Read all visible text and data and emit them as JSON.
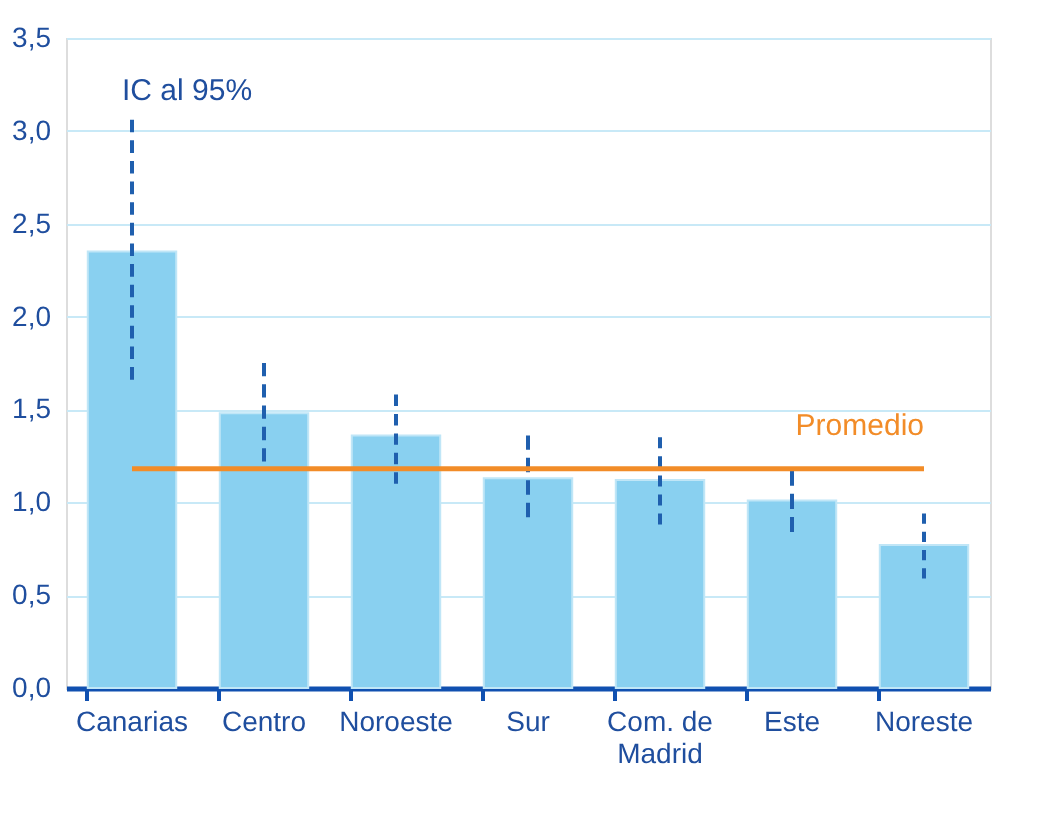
{
  "chart_data": {
    "type": "bar",
    "categories": [
      "Canarias",
      "Centro",
      "Noroeste",
      "Sur",
      "Com. de Madrid",
      "Este",
      "Noreste"
    ],
    "values": [
      2.35,
      1.48,
      1.36,
      1.13,
      1.12,
      1.01,
      0.77
    ],
    "color": "#89d0f0",
    "errors": [
      [
        1.66,
        3.06
      ],
      [
        1.22,
        1.75
      ],
      [
        1.1,
        1.58
      ],
      [
        0.92,
        1.36
      ],
      [
        0.88,
        1.35
      ],
      [
        0.84,
        1.17
      ],
      [
        0.59,
        0.94
      ]
    ],
    "ylim": [
      0,
      3.5
    ],
    "yticks": [
      {
        "value": 0,
        "label": "0,0"
      },
      {
        "value": 0.5,
        "label": "0,5"
      },
      {
        "value": 1,
        "label": "1,0"
      },
      {
        "value": 1.5,
        "label": "1,5"
      },
      {
        "value": 2,
        "label": "2,0"
      },
      {
        "value": 2.5,
        "label": "2,5"
      },
      {
        "value": 3,
        "label": "3,0"
      },
      {
        "value": 3.5,
        "label": "3,5"
      }
    ],
    "grid": "y",
    "ref_lines": [
      {
        "axis": "y",
        "value": 1.18,
        "label": "Promedio",
        "color": "#f28c28"
      }
    ],
    "annotations": [
      "IC al 95%"
    ]
  }
}
